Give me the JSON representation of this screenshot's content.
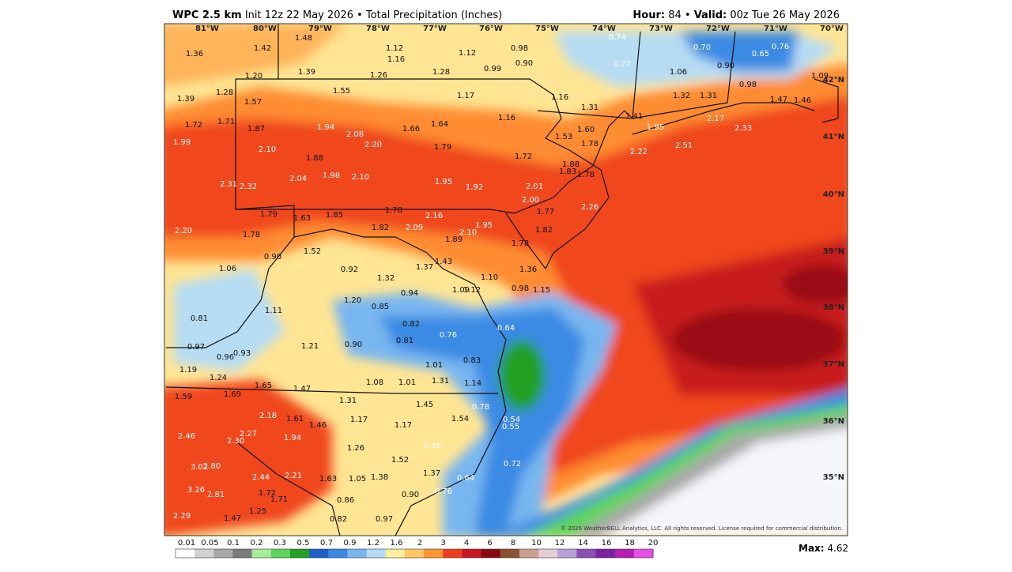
{
  "header": {
    "model": "WPC 2.5 km",
    "init": "Init 12z 22 May 2026 • Total Precipitation (Inches)",
    "hour_label": "Hour:",
    "hour": "84 •",
    "valid_label": "Valid:",
    "valid": "00z Tue 26 May 2026"
  },
  "map": {
    "longitudes": [
      "81°W",
      "80°W",
      "79°W",
      "78°W",
      "77°W",
      "76°W",
      "75°W",
      "74°W",
      "73°W",
      "72°W",
      "71°W",
      "70°W"
    ],
    "latitudes": [
      "42°N",
      "41°N",
      "40°N",
      "39°N",
      "38°N",
      "37°N",
      "36°N",
      "35°N"
    ],
    "values": [
      "1.48",
      "1.36",
      "1.42",
      "1.12",
      "1.16",
      "1.12",
      "0.98",
      "0.90",
      "0.99",
      "0.74",
      "0.70",
      "0.65",
      "0.76",
      "0.77",
      "0.90",
      "1.20",
      "1.39",
      "1.26",
      "1.28",
      "1.06",
      "1.09",
      "0.98",
      "1.55",
      "1.17",
      "1.16",
      "1.31",
      "1.32",
      "1.31",
      "1.47",
      "1.46",
      "1.39",
      "1.28",
      "1.57",
      "1.41",
      "1.72",
      "1.71",
      "1.87",
      "1.94",
      "1.66",
      "1.64",
      "1.16",
      "1.60",
      "1.53",
      "1.95",
      "2.17",
      "2.33",
      "1.99",
      "2.08",
      "2.20",
      "1.79",
      "1.78",
      "2.51",
      "2.22",
      "2.10",
      "1.88",
      "1.72",
      "1.88",
      "1.83",
      "1.78",
      "2.04",
      "1.98",
      "2.10",
      "1.95",
      "1.92",
      "2.01",
      "2.31",
      "2.32",
      "2.00",
      "1.77",
      "2.26",
      "1.79",
      "1.63",
      "1.85",
      "1.78",
      "2.16",
      "2.09",
      "1.82",
      "1.95",
      "2.10",
      "1.89",
      "1.82",
      "1.78",
      "2.20",
      "1.78",
      "1.52",
      "0.90",
      "1.37",
      "1.43",
      "1.06",
      "0.92",
      "1.32",
      "1.10",
      "1.36",
      "1.09",
      "1.12",
      "0.98",
      "1.15",
      "0.94",
      "1.20",
      "0.85",
      "1.11",
      "0.81",
      "0.82",
      "0.64",
      "0.76",
      "0.97",
      "0.90",
      "0.81",
      "1.21",
      "0.96",
      "0.93",
      "0.83",
      "1.01",
      "1.19",
      "1.24",
      "1.08",
      "1.01",
      "1.31",
      "1.14",
      "1.65",
      "1.47",
      "1.59",
      "1.69",
      "1.31",
      "1.45",
      "0.78",
      "2.18",
      "1.61",
      "1.17",
      "1.54",
      "0.54",
      "1.46",
      "1.17",
      "0.55",
      "2.27",
      "1.94",
      "2.46",
      "2.30",
      "1.26",
      "2.30",
      "1.52",
      "3.02",
      "2.80",
      "2.44",
      "2.21",
      "1.63",
      "1.05",
      "1.38",
      "1.37",
      "0.64",
      "0.72",
      "3.26",
      "2.81",
      "1.72",
      "1.71",
      "0.90",
      "0.76",
      "0.86",
      "1.25",
      "2.29",
      "1.47",
      "0.82",
      "0.97"
    ],
    "copyright": "© 2026 WeatherBELL Analytics, LLC. All rights reserved. License required for commercial distribution."
  },
  "legend": {
    "ticks": [
      "0.01",
      "0.05",
      "0.1",
      "0.2",
      "0.3",
      "0.5",
      "0.7",
      "0.9",
      "1.2",
      "1.6",
      "2",
      "3",
      "4",
      "6",
      "8",
      "10",
      "12",
      "14",
      "16",
      "18",
      "20"
    ],
    "colors": [
      "#ffffff",
      "#d2d2d2",
      "#a8a8a8",
      "#7c7c7c",
      "#a6ee9a",
      "#5ed45a",
      "#22a022",
      "#1d5fc6",
      "#3a8ae4",
      "#78b6f0",
      "#b6dcf4",
      "#fff0a0",
      "#ffc864",
      "#ff9632",
      "#f03c1e",
      "#c8141e",
      "#8a0a14",
      "#8c5032",
      "#c8a08c",
      "#e8cdd8",
      "#b9a0d6",
      "#8a50b4",
      "#7a1fa0",
      "#b41eb4",
      "#e650e6"
    ],
    "max_label": "Max:",
    "max_value": "4.62"
  }
}
